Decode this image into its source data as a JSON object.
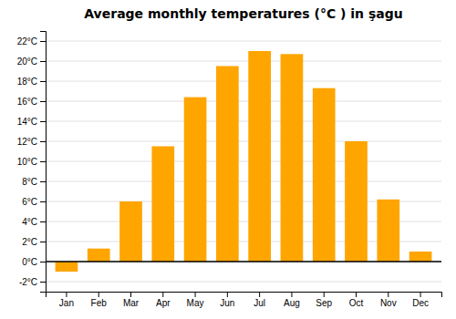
{
  "chart_data": {
    "type": "bar",
    "title": "Average monthly temperatures (°C ) in şagu",
    "categories": [
      "Jan",
      "Feb",
      "Mar",
      "Apr",
      "May",
      "Jun",
      "Jul",
      "Aug",
      "Sep",
      "Oct",
      "Nov",
      "Dec"
    ],
    "values": [
      -1.0,
      1.3,
      6.0,
      11.5,
      16.4,
      19.5,
      21.0,
      20.7,
      17.3,
      12.0,
      6.2,
      1.0
    ],
    "color": "#FFA500",
    "ylim": [
      -3,
      23
    ],
    "yticks": [
      {
        "value": -2,
        "label": "-2°C"
      },
      {
        "value": 0,
        "label": "0°C"
      },
      {
        "value": 2,
        "label": "2°C"
      },
      {
        "value": 4,
        "label": "4°C"
      },
      {
        "value": 6,
        "label": "6°C"
      },
      {
        "value": 8,
        "label": "8°C"
      },
      {
        "value": 10,
        "label": "10°C"
      },
      {
        "value": 12,
        "label": "12°C"
      },
      {
        "value": 14,
        "label": "14°C"
      },
      {
        "value": 16,
        "label": "16°C"
      },
      {
        "value": 18,
        "label": "18°C"
      },
      {
        "value": 20,
        "label": "20°C"
      },
      {
        "value": 22,
        "label": "22°C"
      }
    ],
    "grid": true
  }
}
